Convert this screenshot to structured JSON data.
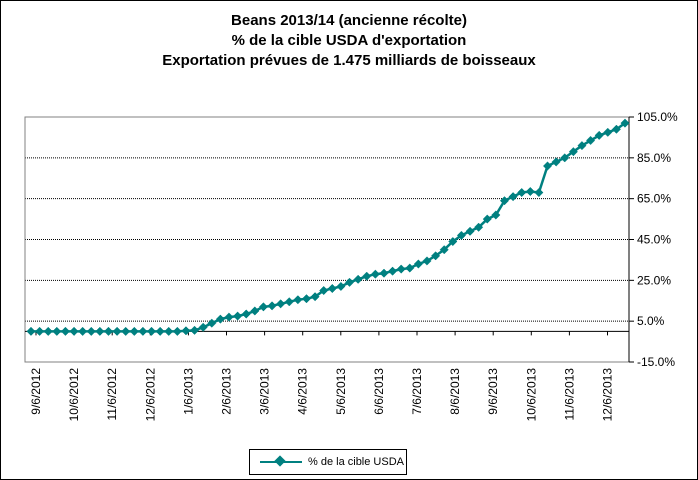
{
  "chart_data": {
    "type": "line",
    "title_lines": [
      "Beans 2013/14 (ancienne récolte)",
      "% de la cible USDA d'exportation",
      "Exportation prévues de 1.475 milliards de boisseaux"
    ],
    "x_tick_labels": [
      "9/6/2012",
      "10/6/2012",
      "11/6/2012",
      "12/6/2012",
      "1/6/2013",
      "2/6/2013",
      "3/6/2013",
      "4/6/2013",
      "5/6/2013",
      "6/6/2013",
      "7/6/2013",
      "8/6/2013",
      "9/6/2013",
      "10/6/2013",
      "11/6/2013",
      "12/6/2013"
    ],
    "y_tick_labels": [
      "105.0%",
      "85.0%",
      "65.0%",
      "45.0%",
      "25.0%",
      "5.0%",
      "-15.0%"
    ],
    "y_ticks": [
      105,
      85,
      65,
      45,
      25,
      5,
      -15
    ],
    "ylim": [
      -15,
      105
    ],
    "grid": true,
    "legend_position": "bottom",
    "series": [
      {
        "name": "% de la cible USDA",
        "color": "#008080",
        "values": [
          0,
          0,
          0,
          0,
          0,
          0,
          0,
          0,
          0,
          0,
          0,
          0,
          0,
          0,
          0,
          0,
          0,
          0,
          0.3,
          0.5,
          2,
          4,
          6,
          7,
          7.5,
          8.5,
          10,
          12,
          12.5,
          13.5,
          14.5,
          15.5,
          16,
          17,
          20,
          21,
          22,
          24,
          25.5,
          27,
          28,
          28.5,
          29.5,
          30.5,
          31,
          33,
          34.5,
          37,
          40,
          44,
          47,
          49,
          51,
          55,
          57,
          64,
          66,
          68,
          68.5,
          68,
          81,
          83,
          85,
          88,
          91,
          93.5,
          96,
          97.5,
          99,
          102
        ]
      }
    ]
  }
}
